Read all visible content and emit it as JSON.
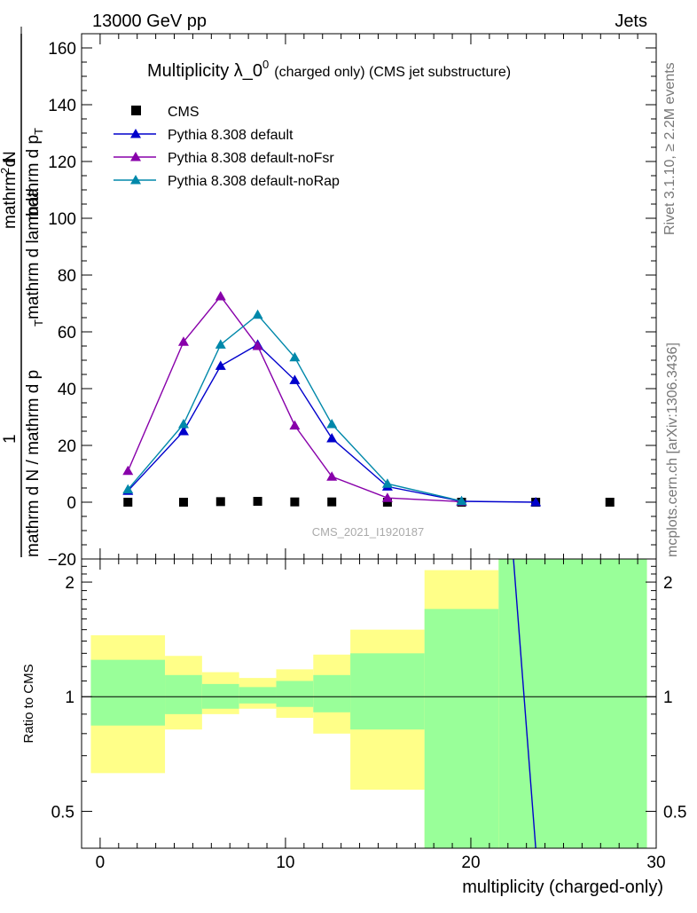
{
  "header": {
    "left": "13000 GeV pp",
    "right": "Jets"
  },
  "side_text": {
    "rivet": "Rivet 3.1.10, ≥ 2.2M events",
    "mcplots": "mcplots.cern.ch [arXiv:1306.3436]"
  },
  "watermark": "CMS_2021_I1920187",
  "colors": {
    "cms": "#000000",
    "default": "#0000cc",
    "noFsr": "#8800aa",
    "noRap": "#0088aa",
    "band_inner": "#99ff99",
    "band_outer": "#ffff88"
  },
  "chart_data": [
    {
      "type": "line",
      "title_main": "Multiplicity λ_0",
      "title_sup": "0",
      "title_note": "(charged only) (CMS jet substructure)",
      "ylabel_parts": [
        "1",
        "mathrm d N / mathrm d p",
        "T",
        "mathrm d lambda",
        "mathrm d",
        "2",
        "N",
        "mathrm d p",
        "T"
      ],
      "ylim": [
        -20,
        165
      ],
      "yticks": [
        -20,
        0,
        20,
        40,
        60,
        80,
        100,
        120,
        140,
        160
      ],
      "xlim": [
        -1,
        30
      ],
      "legend_position": "top-left",
      "series": [
        {
          "name": "CMS",
          "marker": "square",
          "x": [
            1.5,
            4.5,
            6.5,
            8.5,
            10.5,
            12.5,
            15.5,
            19.5,
            23.5,
            27.5
          ],
          "values": [
            0,
            0,
            0.2,
            0.3,
            0.1,
            0.1,
            0,
            0,
            0,
            0
          ]
        },
        {
          "name": "Pythia 8.308 default",
          "marker": "triangle",
          "x": [
            1.5,
            4.5,
            6.5,
            8.5,
            10.5,
            12.5,
            15.5,
            19.5,
            23.5
          ],
          "values": [
            4,
            25,
            48,
            55.5,
            43,
            22.5,
            5.5,
            0.3,
            0
          ]
        },
        {
          "name": "Pythia 8.308 default-noFsr",
          "marker": "triangle",
          "x": [
            1.5,
            4.5,
            6.5,
            8.5,
            10.5,
            12.5,
            15.5,
            19.5
          ],
          "values": [
            11,
            56.5,
            72.5,
            55,
            27,
            9,
            1.5,
            0.2
          ]
        },
        {
          "name": "Pythia 8.308 default-noRap",
          "marker": "triangle",
          "x": [
            1.5,
            4.5,
            6.5,
            8.5,
            10.5,
            12.5,
            15.5,
            19.5
          ],
          "values": [
            4.5,
            27.5,
            55.5,
            66,
            51,
            27.5,
            6.5,
            0.4
          ]
        }
      ]
    },
    {
      "type": "area",
      "ylabel": "Ratio to CMS",
      "xlabel": "multiplicity (charged-only)",
      "yscale": "log",
      "ylim": [
        0.4,
        2.3
      ],
      "yticks": [
        0.5,
        1,
        2
      ],
      "yticklabels": [
        "0.5",
        "1",
        "2"
      ],
      "xlim": [
        -1,
        30
      ],
      "xticks": [
        0,
        10,
        20,
        30
      ],
      "xticklabels": [
        "0",
        "10",
        "20",
        "30"
      ],
      "reference": 1,
      "bins": [
        [
          -0.5,
          3.5
        ],
        [
          3.5,
          5.5
        ],
        [
          5.5,
          7.5
        ],
        [
          7.5,
          9.5
        ],
        [
          9.5,
          11.5
        ],
        [
          11.5,
          13.5
        ],
        [
          13.5,
          17.5
        ],
        [
          17.5,
          21.5
        ],
        [
          21.5,
          29.5
        ]
      ],
      "outer_band": [
        [
          0.63,
          1.45
        ],
        [
          0.82,
          1.28
        ],
        [
          0.9,
          1.16
        ],
        [
          0.93,
          1.12
        ],
        [
          0.88,
          1.18
        ],
        [
          0.8,
          1.29
        ],
        [
          0.57,
          1.5
        ],
        [
          0.3,
          2.15
        ],
        [
          0.3,
          2.5
        ]
      ],
      "inner_band": [
        [
          0.84,
          1.25
        ],
        [
          0.9,
          1.14
        ],
        [
          0.93,
          1.08
        ],
        [
          0.96,
          1.06
        ],
        [
          0.94,
          1.1
        ],
        [
          0.91,
          1.14
        ],
        [
          0.82,
          1.3
        ],
        [
          0.3,
          1.7
        ],
        [
          0.3,
          2.5
        ]
      ],
      "default_ratio_line": {
        "x": [
          22.3,
          23.5
        ],
        "y": [
          2.3,
          0.4
        ]
      }
    }
  ]
}
